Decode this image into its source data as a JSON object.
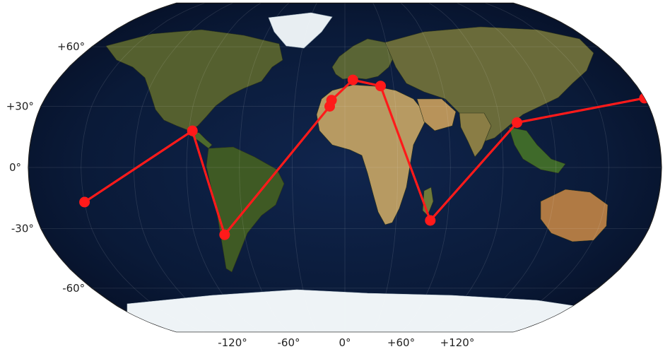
{
  "chart_data": {
    "type": "scatter",
    "projection": "Robinson",
    "background": "satellite imagery (blue marble)",
    "grid": true,
    "xlabel": "",
    "ylabel": "",
    "lon_ticks": [
      {
        "value": -120,
        "label": "-120°"
      },
      {
        "value": -60,
        "label": "-60°"
      },
      {
        "value": 0,
        "label": "0°"
      },
      {
        "value": 60,
        "label": "+60°"
      },
      {
        "value": 120,
        "label": "+120°"
      }
    ],
    "lat_ticks": [
      {
        "value": 60,
        "label": "+60°"
      },
      {
        "value": 30,
        "label": "+30°"
      },
      {
        "value": 0,
        "label": "0°"
      },
      {
        "value": -30,
        "label": "-30°"
      },
      {
        "value": -60,
        "label": "-60°"
      }
    ],
    "series": [
      {
        "style": "line+markers",
        "color": "#ff1a1a",
        "points": [
          {
            "lon": -150,
            "lat": -17
          },
          {
            "lon": -88,
            "lat": 18
          },
          {
            "lon": -72,
            "lat": -33
          },
          {
            "lon": -9,
            "lat": 30
          },
          {
            "lon": -8,
            "lat": 33
          },
          {
            "lon": 5,
            "lat": 43
          },
          {
            "lon": 22,
            "lat": 40
          },
          {
            "lon": 50,
            "lat": -26
          },
          {
            "lon": 100,
            "lat": 22
          },
          {
            "lon": 180,
            "lat": 34
          }
        ]
      }
    ]
  }
}
